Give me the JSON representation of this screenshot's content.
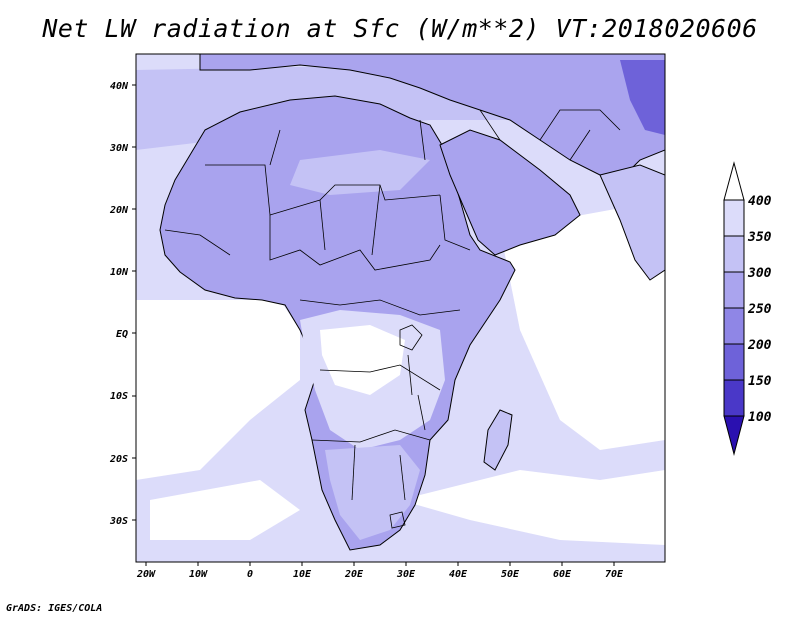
{
  "title": "Net LW radiation at Sfc (W/m**2) VT:2018020606",
  "footer": "GrADS: IGES/COLA",
  "lat_labels": [
    "40N",
    "30N",
    "20N",
    "10N",
    "EQ",
    "10S",
    "20S",
    "30S"
  ],
  "lon_labels": [
    "20W",
    "10W",
    "0",
    "10E",
    "20E",
    "30E",
    "40E",
    "50E",
    "60E",
    "70E"
  ],
  "colorbar": {
    "labels": [
      "400",
      "350",
      "300",
      "250",
      "200",
      "150",
      "100"
    ],
    "colors": [
      "#ffffff",
      "#dcdcfa",
      "#c4c2f5",
      "#aaa4ee",
      "#8f86e6",
      "#6e62d9",
      "#4a38c8",
      "#2a10b0"
    ]
  },
  "map": {
    "extent": {
      "lon": [
        -22,
        80
      ],
      "lat": [
        -37,
        45
      ]
    },
    "land_color": "#a9a3ee",
    "ocean_color": "#dcdcfa",
    "clear_color": "#ffffff"
  }
}
